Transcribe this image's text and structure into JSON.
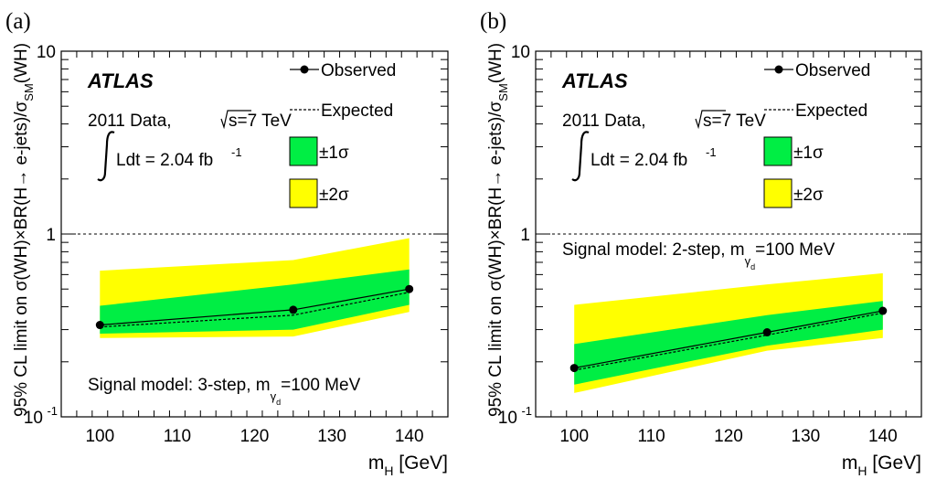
{
  "chart_data": [
    {
      "type": "line",
      "panel_label": "(a)",
      "experiment": "ATLAS",
      "dataset": "2011 Data, ",
      "sqrt_s": "s=7 TeV",
      "lumi": "Ldt = 2.04 fb",
      "lumi_exp": "-1",
      "signal_model": "Signal model: 3-step, m",
      "signal_model_sub": "γ",
      "signal_model_subsub": "d",
      "signal_model_tail": "=100 MeV",
      "ylabel": "95% CL limit on σ(WH)×BR(H→ e-jets)/σ",
      "ylabel_sub": "SM",
      "ylabel_tail": "(WH)",
      "xlabel": "m",
      "xlabel_sub": "H",
      "xlabel_tail": " [GeV]",
      "xlim": [
        95,
        145
      ],
      "ylim": [
        0.1,
        10
      ],
      "yscale": "log",
      "xticks": [
        100,
        110,
        120,
        130,
        140
      ],
      "yticks": [
        {
          "v": 0.1,
          "label": "10",
          "exp": "-1"
        },
        {
          "v": 1,
          "label": "1",
          "exp": ""
        },
        {
          "v": 10,
          "label": "10",
          "exp": ""
        }
      ],
      "x": [
        100,
        125,
        140
      ],
      "observed": [
        0.318,
        0.385,
        0.5
      ],
      "expected": [
        0.31,
        0.36,
        0.48
      ],
      "band1_lo": [
        0.285,
        0.3,
        0.41
      ],
      "band1_hi": [
        0.405,
        0.53,
        0.64
      ],
      "band2_lo": [
        0.27,
        0.275,
        0.375
      ],
      "band2_hi": [
        0.63,
        0.72,
        0.95
      ],
      "reference_line": 1,
      "legend": {
        "observed": "Observed",
        "expected": "Expected",
        "one_sigma": "±1σ",
        "two_sigma": "±2σ"
      }
    },
    {
      "type": "line",
      "panel_label": "(b)",
      "experiment": "ATLAS",
      "dataset": "2011 Data, ",
      "sqrt_s": "s=7 TeV",
      "lumi": "Ldt = 2.04 fb",
      "lumi_exp": "-1",
      "signal_model": "Signal model: 2-step, m",
      "signal_model_sub": "γ",
      "signal_model_subsub": "d",
      "signal_model_tail": "=100 MeV",
      "ylabel": "95% CL limit on σ(WH)×BR(H→ e-jets)/σ",
      "ylabel_sub": "SM",
      "ylabel_tail": "(WH)",
      "xlabel": "m",
      "xlabel_sub": "H",
      "xlabel_tail": " [GeV]",
      "xlim": [
        95,
        145
      ],
      "ylim": [
        0.1,
        10
      ],
      "yscale": "log",
      "xticks": [
        100,
        110,
        120,
        130,
        140
      ],
      "yticks": [
        {
          "v": 0.1,
          "label": "10",
          "exp": "-1"
        },
        {
          "v": 1,
          "label": "1",
          "exp": ""
        },
        {
          "v": 10,
          "label": "10",
          "exp": ""
        }
      ],
      "x": [
        100,
        125,
        140
      ],
      "observed": [
        0.185,
        0.29,
        0.38
      ],
      "expected": [
        0.18,
        0.28,
        0.37
      ],
      "band1_lo": [
        0.15,
        0.245,
        0.3
      ],
      "band1_hi": [
        0.25,
        0.36,
        0.43
      ],
      "band2_lo": [
        0.135,
        0.23,
        0.27
      ],
      "band2_hi": [
        0.41,
        0.53,
        0.61
      ],
      "reference_line": 1,
      "legend": {
        "observed": "Observed",
        "expected": "Expected",
        "one_sigma": "±1σ",
        "two_sigma": "±2σ"
      }
    }
  ],
  "colors": {
    "one_sigma": "#00ee44",
    "two_sigma": "#ffff00",
    "line": "#000000"
  }
}
